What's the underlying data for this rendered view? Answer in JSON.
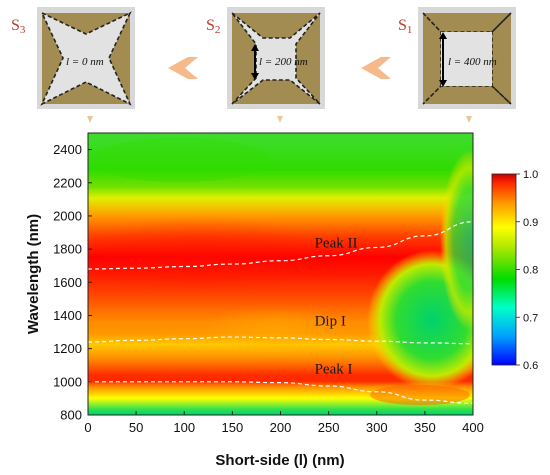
{
  "panels": [
    {
      "label": "S",
      "sub": "3",
      "length_text": "l = 0 nm",
      "short_side_nm": 0
    },
    {
      "label": "S",
      "sub": "2",
      "length_text": "l = 200 nm",
      "short_side_nm": 200
    },
    {
      "label": "S",
      "sub": "1",
      "length_text": "l = 400 nm",
      "short_side_nm": 400
    }
  ],
  "colors": {
    "panel_bg": "#d8d8d8",
    "frame": "#a38c52",
    "window": "#e2e2e2",
    "label": "#c0392b",
    "arrow": "#f5b98b",
    "marker": "#e8c79a"
  },
  "chart_data": {
    "type": "heatmap",
    "xlabel": "Short-side (l) (nm)",
    "ylabel": "Wavelength (nm)",
    "xlim": [
      0,
      400
    ],
    "ylim": [
      800,
      2500
    ],
    "xticks": [
      0,
      50,
      100,
      150,
      200,
      250,
      300,
      350,
      400
    ],
    "yticks": [
      800,
      1000,
      1200,
      1400,
      1600,
      1800,
      2000,
      2200,
      2400
    ],
    "colorbar": {
      "range": [
        0.6,
        1.0
      ],
      "ticks": [
        "1.0",
        "0.9",
        "0.8",
        "0.7",
        "0.6"
      ],
      "stops": [
        "#0000ff",
        "#00b4ff",
        "#00ffc8",
        "#00dc00",
        "#a0e600",
        "#ffff00",
        "#ff9600",
        "#ff2a00",
        "#c80000"
      ]
    },
    "annotations": [
      {
        "text": "Peak II",
        "x": 225,
        "y": 1810
      },
      {
        "text": "Dip I",
        "x": 225,
        "y": 1340
      },
      {
        "text": "Peak I",
        "x": 225,
        "y": 1050
      }
    ],
    "curves": [
      {
        "name": "Peak II",
        "x": [
          0,
          50,
          100,
          150,
          200,
          250,
          300,
          350,
          400
        ],
        "y": [
          1680,
          1685,
          1695,
          1710,
          1730,
          1760,
          1810,
          1880,
          1965
        ]
      },
      {
        "name": "Dip I",
        "x": [
          0,
          50,
          100,
          150,
          200,
          250,
          300,
          350,
          400
        ],
        "y": [
          1240,
          1250,
          1260,
          1270,
          1265,
          1255,
          1245,
          1235,
          1230
        ]
      },
      {
        "name": "Peak I",
        "x": [
          0,
          50,
          100,
          150,
          200,
          250,
          300,
          350,
          400
        ],
        "y": [
          1000,
          1000,
          1000,
          1000,
          995,
          975,
          940,
          890,
          870
        ]
      }
    ]
  }
}
